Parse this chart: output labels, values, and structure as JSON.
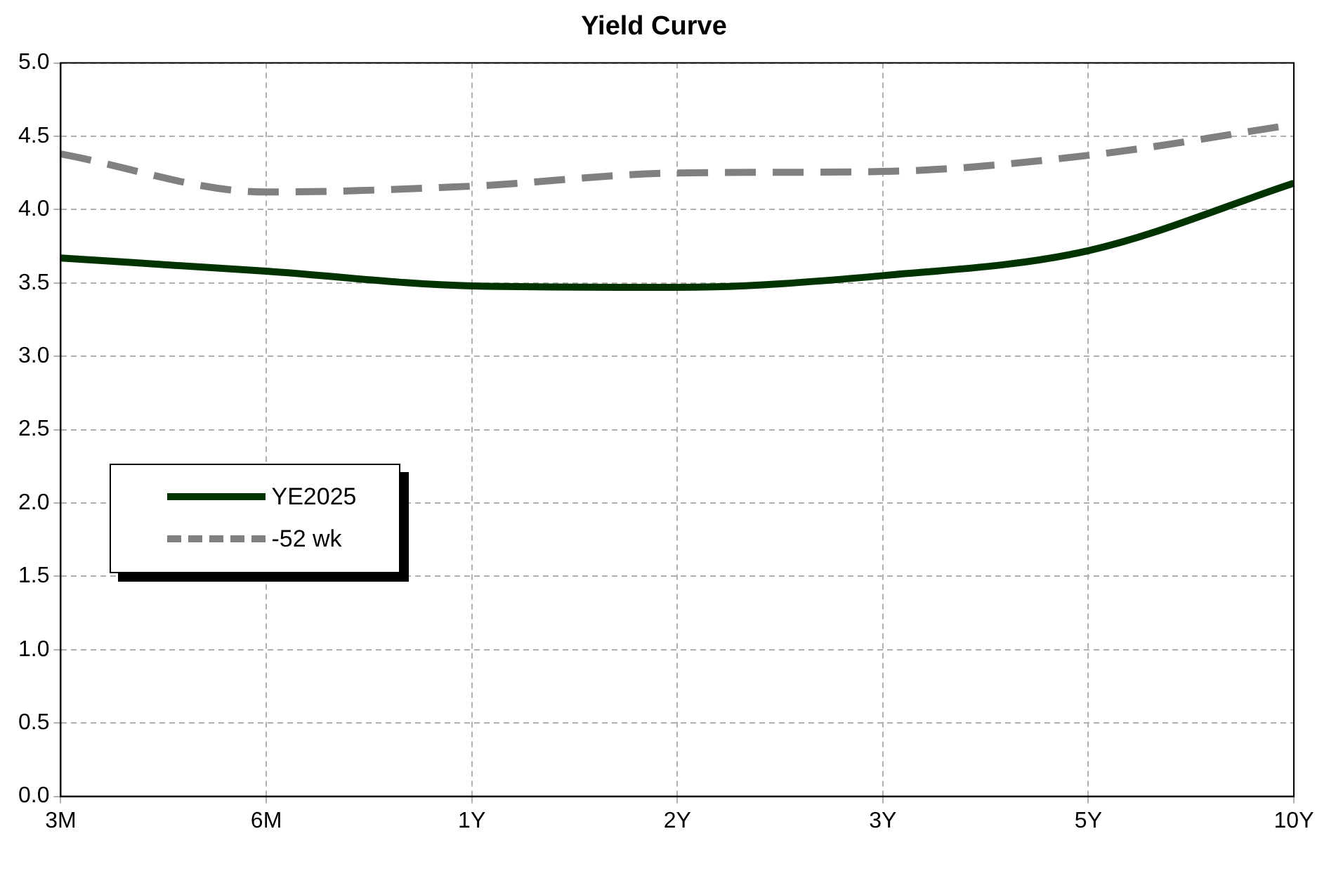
{
  "chart_data": {
    "type": "line",
    "title": "Yield Curve",
    "categories": [
      "3M",
      "6M",
      "1Y",
      "2Y",
      "3Y",
      "5Y",
      "10Y"
    ],
    "series": [
      {
        "name": "YE2025",
        "color": "#003300",
        "line_style": "solid",
        "values": [
          3.67,
          3.58,
          3.48,
          3.47,
          3.55,
          3.72,
          4.18
        ]
      },
      {
        "name": "-52 wk",
        "color": "#808080",
        "line_style": "dashed",
        "values": [
          4.38,
          4.12,
          4.16,
          4.25,
          4.26,
          4.37,
          4.58
        ]
      }
    ],
    "ylim": [
      0,
      5
    ],
    "yticks": [
      {
        "value": 0,
        "label": "0.0"
      },
      0.5,
      {
        "value": 1,
        "label": "1.0"
      },
      1.5,
      {
        "value": 2,
        "label": "2.0"
      },
      2.5,
      {
        "value": 3,
        "label": "3.0"
      },
      3.5,
      {
        "value": 4,
        "label": "4.0"
      },
      4.5,
      {
        "value": 5,
        "label": "5.0"
      }
    ],
    "grid": true,
    "legend": "left",
    "marker": "none"
  }
}
